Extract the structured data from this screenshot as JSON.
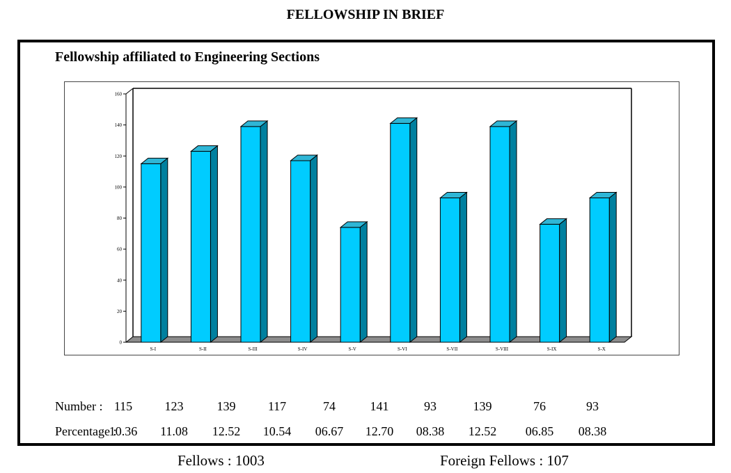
{
  "page_title": "FELLOWSHIP IN BRIEF",
  "chart_heading": "Fellowship affiliated to Engineering Sections",
  "chart_data": {
    "type": "bar",
    "title": "",
    "xlabel": "",
    "ylabel": "",
    "categories": [
      "S-I",
      "S-II",
      "S-III",
      "S-IV",
      "S-V",
      "S-VI",
      "S-VII",
      "S-VIII",
      "S-IX",
      "S-X"
    ],
    "values": [
      115,
      123,
      139,
      117,
      74,
      141,
      93,
      139,
      76,
      93
    ],
    "ylim": [
      0,
      160
    ],
    "yticks": [
      0,
      20,
      40,
      60,
      80,
      100,
      120,
      140,
      160
    ],
    "grid": false,
    "style": "3d",
    "bar_color": "#00CCFF",
    "bar_side_color": "#00809F",
    "bar_top_color": "#2FB6D6",
    "floor_color": "#8C8C8C"
  },
  "table": {
    "number_label": "Number :",
    "percentage_label": "Percentage :",
    "numbers": [
      "115",
      "123",
      "139",
      "117",
      "74",
      "141",
      "93",
      "139",
      "76",
      "93"
    ],
    "percentages": [
      "10.36",
      "11.08",
      "12.52",
      "10.54",
      "06.67",
      "12.70",
      "08.38",
      "12.52",
      "06.85",
      "08.38"
    ]
  },
  "footer": {
    "fellows": "Fellows : 1003",
    "foreign_fellows": "Foreign Fellows : 107"
  }
}
